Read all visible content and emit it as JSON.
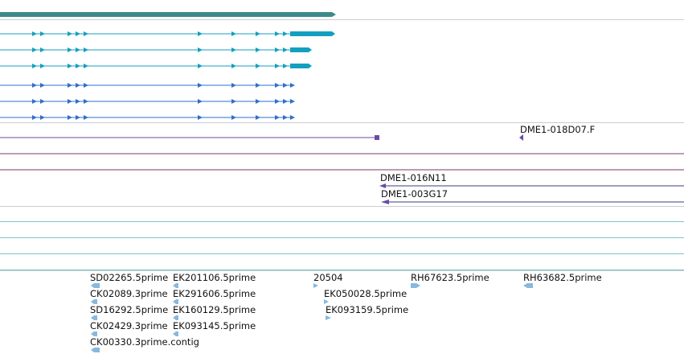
{
  "colors": {
    "separator": "#c9cdd1",
    "gene": "#3d8a8a",
    "transcript_cds": "#13a0c0",
    "transcript_noncoding": "#2f6fcc",
    "clone_feature": "#6e49a8",
    "clone_line": "#7a3a6e",
    "empty_track": "#7fc4cc",
    "est_feature": "#88b8dd"
  },
  "tracks": {
    "gene": {
      "icon": "gene-bar"
    },
    "transcripts_cds": {
      "count": 3,
      "icon": "arrow-right-icon"
    },
    "transcripts_noncoding": {
      "count": 3,
      "icon": "arrow-right-icon"
    },
    "clone_ends": {
      "labels": [
        "DME1-018D07.F"
      ],
      "icon": "arrow-left-icon"
    },
    "clones": {
      "labels": [
        "DME1-016N11",
        "DME1-003G17"
      ],
      "icon": "arrow-left-icon"
    },
    "empty_tracks": {
      "count": 4
    },
    "est_alignments": {
      "labels": [
        "SD02265.5prime",
        "EK201106.5prime",
        "CK02089.3prime",
        "EK291606.5prime",
        "SD16292.5prime",
        "EK160129.5prime",
        "CK02429.3prime",
        "EK093145.5prime",
        "CK00330.3prime.contig",
        "20504",
        "EK050028.5prime",
        "EK093159.5prime",
        "RH67623.5prime",
        "RH63682.5prime"
      ],
      "icon": "arrow-left-icon"
    }
  }
}
